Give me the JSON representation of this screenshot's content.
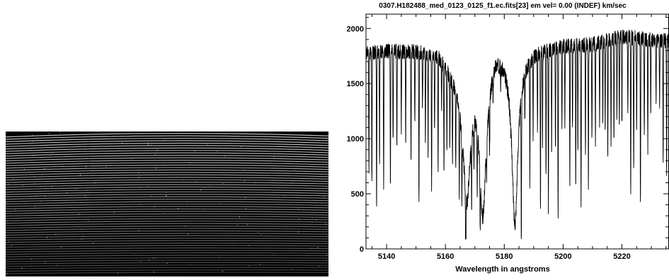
{
  "image_panel": {
    "description_icon": "echelle-spectrum-image",
    "colors": {
      "background": "#000000",
      "orders": "#d8d8d8"
    }
  },
  "chart_data": {
    "type": "line",
    "title": "0307.H182488_med_0123_0125_f1.ec.fits[23]  em vel= 0.00 (INDEF) km/sec",
    "xlabel": "Wavelength in angstroms",
    "ylabel": "",
    "xlim": [
      5133,
      5236
    ],
    "ylim": [
      0,
      2130
    ],
    "x_ticks": [
      5140,
      5160,
      5180,
      5200,
      5220
    ],
    "y_ticks": [
      0,
      500,
      1000,
      1500,
      2000
    ],
    "grid": false,
    "series": [
      {
        "color": "#000000",
        "continuum": [
          [
            5133,
            1780
          ],
          [
            5140,
            1800
          ],
          [
            5150,
            1800
          ],
          [
            5158,
            1760
          ],
          [
            5163,
            1580
          ],
          [
            5166,
            1450
          ],
          [
            5170,
            1600
          ],
          [
            5174,
            1620
          ],
          [
            5177,
            1830
          ],
          [
            5180,
            1780
          ],
          [
            5184,
            1700
          ],
          [
            5190,
            1800
          ],
          [
            5200,
            1850
          ],
          [
            5210,
            1860
          ],
          [
            5220,
            1930
          ],
          [
            5230,
            1900
          ],
          [
            5236,
            1890
          ]
        ],
        "features": [
          {
            "x": 5134.0,
            "depth": 1100
          },
          {
            "x": 5135.0,
            "depth": 1200
          },
          {
            "x": 5136.6,
            "depth": 1450
          },
          {
            "x": 5137.6,
            "depth": 1000
          },
          {
            "x": 5139.0,
            "depth": 1300
          },
          {
            "x": 5141.3,
            "depth": 1200
          },
          {
            "x": 5142.2,
            "depth": 850
          },
          {
            "x": 5143.5,
            "depth": 900
          },
          {
            "x": 5145.0,
            "depth": 700
          },
          {
            "x": 5146.5,
            "depth": 800
          },
          {
            "x": 5148.3,
            "depth": 1050
          },
          {
            "x": 5149.6,
            "depth": 650
          },
          {
            "x": 5151.0,
            "depth": 1400
          },
          {
            "x": 5152.2,
            "depth": 550
          },
          {
            "x": 5153.2,
            "depth": 850
          },
          {
            "x": 5154.1,
            "depth": 900
          },
          {
            "x": 5155.3,
            "depth": 1250
          },
          {
            "x": 5156.3,
            "depth": 700
          },
          {
            "x": 5157.5,
            "depth": 1000
          },
          {
            "x": 5158.7,
            "depth": 400
          },
          {
            "x": 5159.5,
            "depth": 950
          },
          {
            "x": 5160.5,
            "depth": 700
          },
          {
            "x": 5161.5,
            "depth": 650
          },
          {
            "x": 5162.4,
            "depth": 750
          },
          {
            "x": 5163.5,
            "depth": 700
          },
          {
            "x": 5164.7,
            "depth": 750
          },
          {
            "x": 5165.6,
            "depth": 600
          },
          {
            "x": 5166.9,
            "depth": 1050
          },
          {
            "x": 5168.9,
            "depth": 600
          },
          {
            "x": 5169.7,
            "depth": 400
          },
          {
            "x": 5170.8,
            "depth": 550
          },
          {
            "x": 5171.8,
            "depth": 500
          },
          {
            "x": 5174.0,
            "depth": 300
          },
          {
            "x": 5175.0,
            "depth": 500
          },
          {
            "x": 5176.2,
            "depth": 250
          },
          {
            "x": 5178.8,
            "depth": 200
          },
          {
            "x": 5185.8,
            "depth": 1400
          },
          {
            "x": 5187.0,
            "depth": 450
          },
          {
            "x": 5188.7,
            "depth": 1150
          },
          {
            "x": 5189.8,
            "depth": 700
          },
          {
            "x": 5191.3,
            "depth": 700
          },
          {
            "x": 5192.3,
            "depth": 1400
          },
          {
            "x": 5193.0,
            "depth": 800
          },
          {
            "x": 5194.2,
            "depth": 1150
          },
          {
            "x": 5195.0,
            "depth": 1450
          },
          {
            "x": 5196.1,
            "depth": 900
          },
          {
            "x": 5197.4,
            "depth": 950
          },
          {
            "x": 5198.3,
            "depth": 1600
          },
          {
            "x": 5199.6,
            "depth": 750
          },
          {
            "x": 5200.6,
            "depth": 700
          },
          {
            "x": 5202.3,
            "depth": 1250
          },
          {
            "x": 5203.2,
            "depth": 800
          },
          {
            "x": 5204.3,
            "depth": 1300
          },
          {
            "x": 5205.0,
            "depth": 1000
          },
          {
            "x": 5206.1,
            "depth": 1500
          },
          {
            "x": 5207.6,
            "depth": 1000
          },
          {
            "x": 5208.6,
            "depth": 1300
          },
          {
            "x": 5209.8,
            "depth": 900
          },
          {
            "x": 5211.0,
            "depth": 900
          },
          {
            "x": 5212.4,
            "depth": 750
          },
          {
            "x": 5213.5,
            "depth": 750
          },
          {
            "x": 5214.3,
            "depth": 850
          },
          {
            "x": 5215.2,
            "depth": 1050
          },
          {
            "x": 5216.3,
            "depth": 1000
          },
          {
            "x": 5217.3,
            "depth": 950
          },
          {
            "x": 5218.3,
            "depth": 700
          },
          {
            "x": 5219.1,
            "depth": 800
          },
          {
            "x": 5220.0,
            "depth": 800
          },
          {
            "x": 5222.0,
            "depth": 700
          },
          {
            "x": 5223.0,
            "depth": 1450
          },
          {
            "x": 5224.0,
            "depth": 1250
          },
          {
            "x": 5225.0,
            "depth": 850
          },
          {
            "x": 5226.3,
            "depth": 1550
          },
          {
            "x": 5227.6,
            "depth": 900
          },
          {
            "x": 5228.8,
            "depth": 1000
          },
          {
            "x": 5229.8,
            "depth": 650
          },
          {
            "x": 5231.6,
            "depth": 600
          },
          {
            "x": 5232.8,
            "depth": 550
          },
          {
            "x": 5234.0,
            "depth": 1150
          },
          {
            "x": 5235.2,
            "depth": 1250
          }
        ],
        "broad_lines": [
          {
            "x": 5167.3,
            "depth": 1000,
            "width": 1.4
          },
          {
            "x": 5172.7,
            "depth": 1250,
            "width": 1.3
          },
          {
            "x": 5183.6,
            "depth": 1450,
            "width": 1.2
          }
        ]
      }
    ]
  }
}
